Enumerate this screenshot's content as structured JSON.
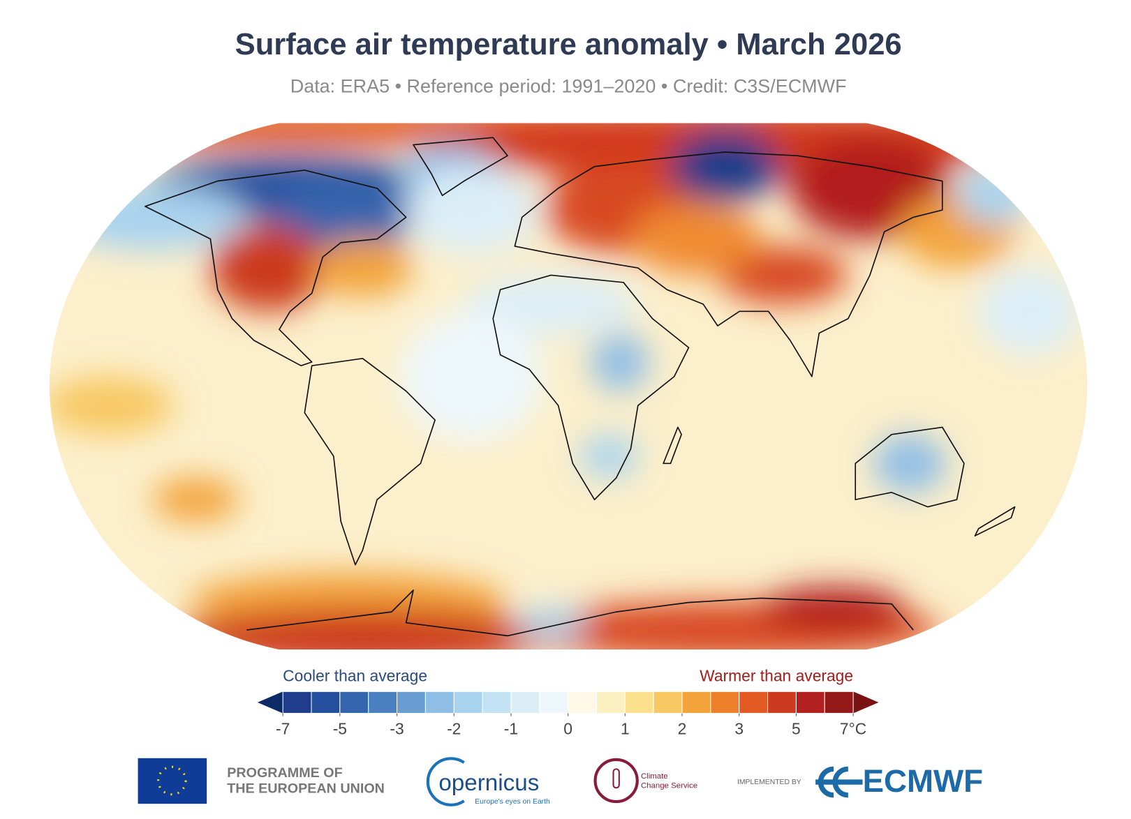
{
  "header": {
    "title": "Surface air temperature anomaly • March 2026",
    "subtitle": "Data: ERA5 • Reference period: 1991–2020 • Credit: C3S/ECMWF"
  },
  "legend": {
    "cool_label": "Cooler than average",
    "warm_label": "Warmer than average",
    "colors": [
      "#0b2a66",
      "#1f3d8a",
      "#244f9e",
      "#3565ae",
      "#4a7fc0",
      "#6a9ed2",
      "#8ebde6",
      "#a8d3ef",
      "#c3e3f4",
      "#dbeef8",
      "#eef7fb",
      "#fdf9e6",
      "#fcefc0",
      "#fbe08e",
      "#f8c862",
      "#f3a33a",
      "#ee7f2a",
      "#e25a22",
      "#cc3a1f",
      "#b21f1f",
      "#931818",
      "#7a1212"
    ],
    "ticks": [
      -7,
      -5,
      -3,
      -2,
      -1,
      0,
      1,
      2,
      3,
      5,
      {
        "value": 7,
        "label": "7°C"
      }
    ]
  },
  "footer": {
    "eu_line1": "PROGRAMME OF",
    "eu_line2": "THE EUROPEAN UNION",
    "copernicus": "opernicus",
    "copernicus_tagline": "Europe's eyes on Earth",
    "c3s_line1": "Climate",
    "c3s_line2": "Change Service",
    "implemented_by": "IMPLEMENTED BY",
    "ecmwf": "ECMWF"
  }
}
